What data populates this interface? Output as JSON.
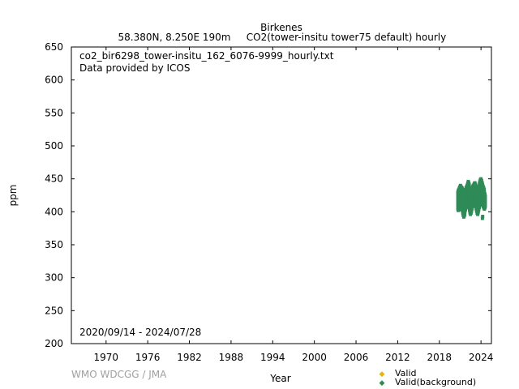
{
  "header": {
    "station": "Birkenes",
    "location": "58.380N, 8.250E 190m",
    "series_desc": "CO2(tower-insitu tower75 default) hourly"
  },
  "annotations": {
    "filename": "co2_bir6298_tower-insitu_162_6076-9999_hourly.txt",
    "provider": "Data provided by ICOS",
    "period": "2020/09/14 - 2024/07/28"
  },
  "watermark": "WMO WDCGG / JMA",
  "colors": {
    "valid": "#e8b400",
    "background": "#2e8b57"
  },
  "chart_data": {
    "type": "scatter",
    "xlabel": "Year",
    "ylabel": "ppm",
    "xlim": [
      1965.0,
      2025.5
    ],
    "ylim": [
      200,
      650
    ],
    "x_ticks": [
      1970,
      1976,
      1982,
      1988,
      1994,
      2000,
      2006,
      2012,
      2018,
      2024
    ],
    "y_ticks": [
      200,
      250,
      300,
      350,
      400,
      450,
      500,
      550,
      600,
      650
    ],
    "grid": false,
    "legend_position": "bottom-right",
    "series": [
      {
        "name": "Valid",
        "color": "#e8b400",
        "points": []
      },
      {
        "name": "Valid(background)",
        "color": "#2e8b57",
        "points": [
          [
            2020.72,
            402
          ],
          [
            2020.72,
            432
          ],
          [
            2020.8,
            404
          ],
          [
            2020.8,
            434
          ],
          [
            2020.88,
            403
          ],
          [
            2020.88,
            436
          ],
          [
            2020.96,
            405
          ],
          [
            2020.96,
            438
          ],
          [
            2021.04,
            408
          ],
          [
            2021.04,
            440
          ],
          [
            2021.12,
            410
          ],
          [
            2021.12,
            438
          ],
          [
            2021.2,
            412
          ],
          [
            2021.2,
            437
          ],
          [
            2021.28,
            408
          ],
          [
            2021.28,
            436
          ],
          [
            2021.36,
            400
          ],
          [
            2021.36,
            430
          ],
          [
            2021.44,
            395
          ],
          [
            2021.44,
            424
          ],
          [
            2021.52,
            392
          ],
          [
            2021.52,
            420
          ],
          [
            2021.6,
            394
          ],
          [
            2021.6,
            422
          ],
          [
            2021.68,
            400
          ],
          [
            2021.68,
            428
          ],
          [
            2021.76,
            404
          ],
          [
            2021.76,
            432
          ],
          [
            2021.84,
            406
          ],
          [
            2021.84,
            436
          ],
          [
            2021.92,
            407
          ],
          [
            2021.92,
            438
          ],
          [
            2022.0,
            410
          ],
          [
            2022.0,
            440
          ],
          [
            2022.08,
            412
          ],
          [
            2022.08,
            442
          ],
          [
            2022.16,
            414
          ],
          [
            2022.16,
            446
          ],
          [
            2022.24,
            412
          ],
          [
            2022.24,
            444
          ],
          [
            2022.32,
            406
          ],
          [
            2022.32,
            438
          ],
          [
            2022.4,
            400
          ],
          [
            2022.4,
            430
          ],
          [
            2022.48,
            396
          ],
          [
            2022.48,
            424
          ],
          [
            2022.56,
            398
          ],
          [
            2022.56,
            426
          ],
          [
            2022.64,
            402
          ],
          [
            2022.64,
            430
          ],
          [
            2022.72,
            406
          ],
          [
            2022.72,
            434
          ],
          [
            2022.8,
            408
          ],
          [
            2022.8,
            438
          ],
          [
            2022.88,
            410
          ],
          [
            2022.88,
            440
          ],
          [
            2022.96,
            412
          ],
          [
            2022.96,
            441
          ],
          [
            2023.04,
            414
          ],
          [
            2023.04,
            443
          ],
          [
            2023.12,
            415
          ],
          [
            2023.12,
            444
          ],
          [
            2023.2,
            413
          ],
          [
            2023.2,
            442
          ],
          [
            2023.28,
            408
          ],
          [
            2023.28,
            438
          ],
          [
            2023.36,
            402
          ],
          [
            2023.36,
            430
          ],
          [
            2023.44,
            398
          ],
          [
            2023.44,
            426
          ],
          [
            2023.52,
            396
          ],
          [
            2023.52,
            424
          ],
          [
            2023.6,
            400
          ],
          [
            2023.6,
            428
          ],
          [
            2023.68,
            404
          ],
          [
            2023.68,
            434
          ],
          [
            2023.76,
            408
          ],
          [
            2023.76,
            440
          ],
          [
            2023.84,
            412
          ],
          [
            2023.84,
            446
          ],
          [
            2023.92,
            414
          ],
          [
            2023.92,
            449
          ],
          [
            2024.0,
            416
          ],
          [
            2024.0,
            450
          ],
          [
            2024.08,
            416
          ],
          [
            2024.08,
            447
          ],
          [
            2024.16,
            414
          ],
          [
            2024.16,
            444
          ],
          [
            2024.24,
            410
          ],
          [
            2024.24,
            440
          ],
          [
            2024.32,
            408
          ],
          [
            2024.32,
            438
          ],
          [
            2024.4,
            406
          ],
          [
            2024.4,
            436
          ],
          [
            2024.48,
            404
          ],
          [
            2024.48,
            430
          ],
          [
            2024.56,
            406
          ],
          [
            2024.56,
            426
          ],
          [
            2024.2,
            390
          ],
          [
            2024.24,
            393
          ]
        ]
      }
    ]
  }
}
